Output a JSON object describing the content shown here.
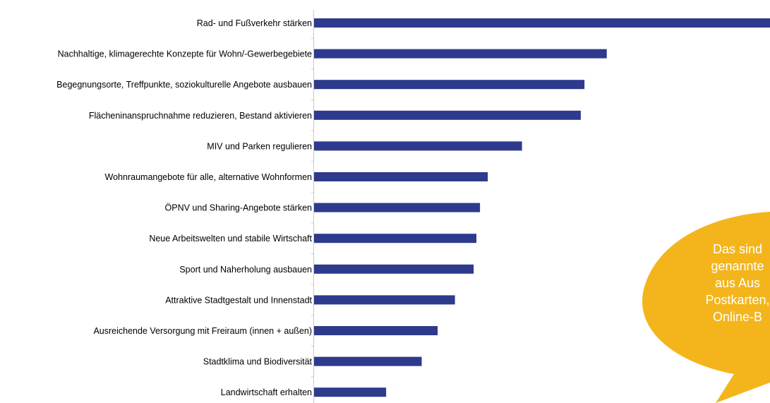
{
  "chart_data": {
    "type": "bar",
    "orientation": "horizontal",
    "categories": [
      "Rad- und Fußverkehr stärken",
      "Nachhaltige, klimagerechte Konzepte für Wohn/-Gewerbegebiete",
      "Begegnungsorte, Treffpunkte, soziokulturelle Angebote ausbauen",
      "Flächeninanspruchnahme reduzieren, Bestand aktivieren",
      "MIV und Parken regulieren",
      "Wohnraumangebote für alle, alternative Wohnformen",
      "ÖPNV und Sharing-Angebote stärken",
      "Neue Arbeitswelten und stabile Wirtschaft",
      "Sport und Naherholung ausbauen",
      "Attraktive Stadtgestalt und Innenstadt",
      "Ausreichende Versorgung mit Freiraum (innen + außen)",
      "Stadtklima und Biodiversität",
      "Landwirtschaft erhalten"
    ],
    "values": [
      100,
      64.2,
      59.3,
      58.5,
      45.6,
      38.1,
      36.4,
      35.6,
      35.0,
      30.9,
      27.1,
      23.6,
      15.8
    ],
    "xlim": [
      0,
      100
    ],
    "bar_color": "#2e3a8c",
    "grid": false,
    "legend": "none"
  },
  "callout": {
    "lines": [
      "Das sind",
      "genannte",
      "aus Aus",
      "Postkarten,",
      "Online-B"
    ],
    "color": "#f3b51b",
    "text_color": "#ffffff"
  }
}
